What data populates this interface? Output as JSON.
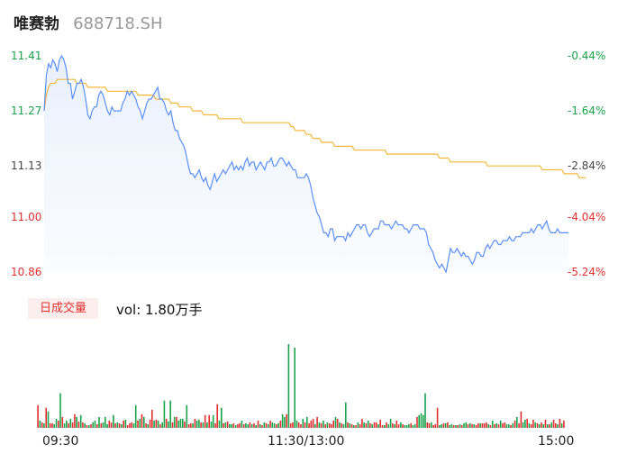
{
  "stock": {
    "name": "唯赛勃",
    "code": "688718.SH"
  },
  "volume_panel": {
    "tag_label": "日成交量",
    "vol_text": "vol: 1.80万手"
  },
  "colors": {
    "up": "#e03030",
    "down": "#1aa34a",
    "neutral": "#444444",
    "price_line": "#5b8ff9",
    "avg_line": "#f5b73b"
  },
  "chart_data": {
    "type": "line",
    "title": "",
    "xlabel": "",
    "ylabel": "",
    "ylim": [
      10.86,
      11.41
    ],
    "y_ticks": [
      {
        "label": "11.41",
        "value": 11.41,
        "pct": "-0.44%",
        "dir": "down"
      },
      {
        "label": "11.27",
        "value": 11.27,
        "pct": "-1.64%",
        "dir": "down"
      },
      {
        "label": "11.13",
        "value": 11.13,
        "pct": "-2.84%",
        "dir": "neutral"
      },
      {
        "label": "11.00",
        "value": 11.0,
        "pct": "-4.04%",
        "dir": "up"
      },
      {
        "label": "10.86",
        "value": 10.86,
        "pct": "-5.24%",
        "dir": "up"
      }
    ],
    "x_ticks": [
      "09:30",
      "11:30/13:00",
      "15:00"
    ],
    "price": [
      11.27,
      11.36,
      11.39,
      11.38,
      11.4,
      11.39,
      11.37,
      11.4,
      11.41,
      11.4,
      11.38,
      11.34,
      11.34,
      11.3,
      11.32,
      11.34,
      11.34,
      11.35,
      11.33,
      11.3,
      11.26,
      11.25,
      11.27,
      11.28,
      11.28,
      11.31,
      11.32,
      11.31,
      11.29,
      11.27,
      11.26,
      11.28,
      11.27,
      11.27,
      11.27,
      11.27,
      11.29,
      11.3,
      11.32,
      11.31,
      11.32,
      11.31,
      11.3,
      11.28,
      11.27,
      11.25,
      11.27,
      11.29,
      11.3,
      11.3,
      11.31,
      11.32,
      11.33,
      11.3,
      11.3,
      11.29,
      11.27,
      11.26,
      11.27,
      11.24,
      11.22,
      11.22,
      11.2,
      11.19,
      11.18,
      11.16,
      11.13,
      11.11,
      11.11,
      11.1,
      11.11,
      11.12,
      11.1,
      11.09,
      11.1,
      11.08,
      11.07,
      11.09,
      11.11,
      11.09,
      11.1,
      11.11,
      11.12,
      11.11,
      11.12,
      11.13,
      11.14,
      11.12,
      11.13,
      11.12,
      11.13,
      11.12,
      11.14,
      11.15,
      11.13,
      11.14,
      11.14,
      11.12,
      11.13,
      11.14,
      11.13,
      11.12,
      11.14,
      11.14,
      11.15,
      11.13,
      11.13,
      11.14,
      11.15,
      11.15,
      11.14,
      11.13,
      11.14,
      11.13,
      11.12,
      11.12,
      11.1,
      11.1,
      11.1,
      11.1,
      11.11,
      11.1,
      11.08,
      11.05,
      11.03,
      11.01,
      11.0,
      10.98,
      10.96,
      10.96,
      10.95,
      10.97,
      10.97,
      10.94,
      10.95,
      10.95,
      10.95,
      10.95,
      10.94,
      10.96,
      10.95,
      10.96,
      10.97,
      10.98,
      10.98,
      10.97,
      10.98,
      10.98,
      10.96,
      10.95,
      10.96,
      10.97,
      10.97,
      10.97,
      10.99,
      10.99,
      10.98,
      10.98,
      10.98,
      10.97,
      10.98,
      10.99,
      10.98,
      10.98,
      10.98,
      10.97,
      10.97,
      10.96,
      10.97,
      10.98,
      10.98,
      10.98,
      10.97,
      10.97,
      10.97,
      10.96,
      10.93,
      10.92,
      10.91,
      10.89,
      10.88,
      10.87,
      10.88,
      10.87,
      10.86,
      10.89,
      10.92,
      10.91,
      10.91,
      10.92,
      10.91,
      10.9,
      10.91,
      10.9,
      10.9,
      10.89,
      10.88,
      10.89,
      10.91,
      10.91,
      10.9,
      10.9,
      10.92,
      10.93,
      10.92,
      10.93,
      10.94,
      10.94,
      10.93,
      10.93,
      10.94,
      10.94,
      10.94,
      10.95,
      10.94,
      10.94,
      10.95,
      10.95,
      10.95,
      10.96,
      10.96,
      10.96,
      10.96,
      10.97,
      10.96,
      10.97,
      10.98,
      10.98,
      10.97,
      10.98,
      10.99,
      10.97,
      10.96,
      10.96,
      10.96,
      10.97,
      10.96,
      10.96,
      10.96,
      10.96,
      10.96
    ],
    "avg": [
      11.27,
      11.31,
      11.33,
      11.34,
      11.34,
      11.34,
      11.35,
      11.35,
      11.35,
      11.35,
      11.35,
      11.35,
      11.35,
      11.35,
      11.35,
      11.34,
      11.34,
      11.34,
      11.34,
      11.34,
      11.33,
      11.33,
      11.33,
      11.33,
      11.33,
      11.33,
      11.33,
      11.33,
      11.33,
      11.32,
      11.32,
      11.32,
      11.32,
      11.32,
      11.32,
      11.32,
      11.32,
      11.32,
      11.32,
      11.32,
      11.32,
      11.32,
      11.32,
      11.31,
      11.31,
      11.31,
      11.31,
      11.31,
      11.31,
      11.31,
      11.31,
      11.3,
      11.3,
      11.3,
      11.3,
      11.3,
      11.3,
      11.3,
      11.29,
      11.29,
      11.29,
      11.29,
      11.28,
      11.28,
      11.28,
      11.28,
      11.28,
      11.28,
      11.27,
      11.27,
      11.27,
      11.27,
      11.27,
      11.26,
      11.26,
      11.26,
      11.26,
      11.26,
      11.26,
      11.26,
      11.25,
      11.25,
      11.25,
      11.25,
      11.25,
      11.25,
      11.25,
      11.25,
      11.25,
      11.25,
      11.25,
      11.24,
      11.24,
      11.24,
      11.24,
      11.24,
      11.24,
      11.24,
      11.24,
      11.24,
      11.24,
      11.24,
      11.24,
      11.24,
      11.24,
      11.24,
      11.24,
      11.24,
      11.24,
      11.24,
      11.24,
      11.24,
      11.24,
      11.23,
      11.23,
      11.22,
      11.22,
      11.22,
      11.22,
      11.22,
      11.21,
      11.21,
      11.21,
      11.2,
      11.2,
      11.2,
      11.2,
      11.19,
      11.19,
      11.19,
      11.19,
      11.19,
      11.19,
      11.18,
      11.18,
      11.18,
      11.18,
      11.18,
      11.18,
      11.18,
      11.18,
      11.18,
      11.17,
      11.17,
      11.17,
      11.17,
      11.17,
      11.17,
      11.17,
      11.17,
      11.17,
      11.17,
      11.17,
      11.17,
      11.17,
      11.17,
      11.17,
      11.16,
      11.16,
      11.16,
      11.16,
      11.16,
      11.16,
      11.16,
      11.16,
      11.16,
      11.16,
      11.16,
      11.16,
      11.16,
      11.16,
      11.16,
      11.16,
      11.16,
      11.16,
      11.16,
      11.16,
      11.16,
      11.16,
      11.16,
      11.16,
      11.15,
      11.15,
      11.15,
      11.15,
      11.15,
      11.14,
      11.14,
      11.14,
      11.14,
      11.14,
      11.14,
      11.14,
      11.14,
      11.14,
      11.14,
      11.14,
      11.14,
      11.14,
      11.14,
      11.14,
      11.14,
      11.14,
      11.13,
      11.13,
      11.13,
      11.13,
      11.13,
      11.13,
      11.13,
      11.13,
      11.13,
      11.13,
      11.13,
      11.13,
      11.13,
      11.13,
      11.13,
      11.13,
      11.13,
      11.13,
      11.13,
      11.13,
      11.13,
      11.13,
      11.13,
      11.13,
      11.13,
      11.12,
      11.12,
      11.12,
      11.12,
      11.12,
      11.12,
      11.12,
      11.12,
      11.12,
      11.12,
      11.11,
      11.11,
      11.11,
      11.11,
      11.11,
      11.11,
      11.11,
      11.1,
      11.1,
      11.1,
      11.1
    ],
    "volume": [
      [
        25,
        "up"
      ],
      [
        8,
        "down"
      ],
      [
        6,
        "up"
      ],
      [
        5,
        "down"
      ],
      [
        22,
        "up"
      ],
      [
        18,
        "down"
      ],
      [
        5,
        "up"
      ],
      [
        5,
        "up"
      ],
      [
        4,
        "down"
      ],
      [
        10,
        "down"
      ],
      [
        8,
        "up"
      ],
      [
        38,
        "down"
      ],
      [
        12,
        "up"
      ],
      [
        5,
        "down"
      ],
      [
        8,
        "down"
      ],
      [
        5,
        "up"
      ],
      [
        10,
        "down"
      ],
      [
        6,
        "up"
      ],
      [
        15,
        "up"
      ],
      [
        12,
        "down"
      ],
      [
        7,
        "up"
      ],
      [
        14,
        "down"
      ],
      [
        6,
        "up"
      ],
      [
        5,
        "down"
      ],
      [
        3,
        "up"
      ],
      [
        3,
        "down"
      ],
      [
        4,
        "up"
      ],
      [
        6,
        "down"
      ],
      [
        8,
        "down"
      ],
      [
        4,
        "up"
      ],
      [
        12,
        "down"
      ],
      [
        5,
        "up"
      ],
      [
        6,
        "down"
      ],
      [
        12,
        "down"
      ],
      [
        4,
        "down"
      ],
      [
        8,
        "up"
      ],
      [
        6,
        "up"
      ],
      [
        14,
        "down"
      ],
      [
        5,
        "up"
      ],
      [
        6,
        "down"
      ],
      [
        5,
        "up"
      ],
      [
        4,
        "down"
      ],
      [
        8,
        "up"
      ],
      [
        9,
        "down"
      ],
      [
        3,
        "up"
      ],
      [
        5,
        "up"
      ],
      [
        6,
        "up"
      ],
      [
        5,
        "down"
      ],
      [
        25,
        "down"
      ],
      [
        8,
        "up"
      ],
      [
        10,
        "down"
      ],
      [
        15,
        "up"
      ],
      [
        12,
        "down"
      ],
      [
        5,
        "up"
      ],
      [
        4,
        "down"
      ],
      [
        9,
        "up"
      ],
      [
        20,
        "up"
      ],
      [
        8,
        "down"
      ],
      [
        9,
        "up"
      ],
      [
        8,
        "down"
      ],
      [
        4,
        "up"
      ],
      [
        6,
        "down"
      ],
      [
        30,
        "down"
      ],
      [
        10,
        "up"
      ],
      [
        7,
        "down"
      ],
      [
        30,
        "down"
      ],
      [
        6,
        "up"
      ],
      [
        12,
        "down"
      ],
      [
        12,
        "up"
      ],
      [
        8,
        "down"
      ],
      [
        10,
        "down"
      ],
      [
        10,
        "down"
      ],
      [
        7,
        "up"
      ],
      [
        25,
        "down"
      ],
      [
        4,
        "up"
      ],
      [
        5,
        "up"
      ],
      [
        5,
        "down"
      ],
      [
        10,
        "up"
      ],
      [
        8,
        "down"
      ],
      [
        9,
        "down"
      ],
      [
        6,
        "up"
      ],
      [
        6,
        "down"
      ],
      [
        14,
        "up"
      ],
      [
        6,
        "down"
      ],
      [
        14,
        "up"
      ],
      [
        7,
        "down"
      ],
      [
        14,
        "down"
      ],
      [
        5,
        "up"
      ],
      [
        26,
        "up"
      ],
      [
        8,
        "down"
      ],
      [
        22,
        "down"
      ],
      [
        5,
        "up"
      ],
      [
        6,
        "down"
      ],
      [
        7,
        "up"
      ],
      [
        4,
        "down"
      ],
      [
        4,
        "down"
      ],
      [
        5,
        "up"
      ],
      [
        3,
        "down"
      ],
      [
        4,
        "up"
      ],
      [
        5,
        "up"
      ],
      [
        8,
        "down"
      ],
      [
        4,
        "up"
      ],
      [
        5,
        "down"
      ],
      [
        4,
        "down"
      ],
      [
        6,
        "up"
      ],
      [
        4,
        "down"
      ],
      [
        5,
        "up"
      ],
      [
        3,
        "down"
      ],
      [
        8,
        "up"
      ],
      [
        4,
        "down"
      ],
      [
        3,
        "up"
      ],
      [
        6,
        "down"
      ],
      [
        5,
        "up"
      ],
      [
        4,
        "down"
      ],
      [
        8,
        "up"
      ],
      [
        6,
        "down"
      ],
      [
        5,
        "down"
      ],
      [
        4,
        "up"
      ],
      [
        5,
        "down"
      ],
      [
        8,
        "up"
      ],
      [
        15,
        "down"
      ],
      [
        12,
        "down"
      ],
      [
        15,
        "up"
      ],
      [
        92,
        "down"
      ],
      [
        5,
        "up"
      ],
      [
        6,
        "up"
      ],
      [
        88,
        "down"
      ],
      [
        8,
        "down"
      ],
      [
        6,
        "up"
      ],
      [
        4,
        "up"
      ],
      [
        10,
        "down"
      ],
      [
        6,
        "up"
      ],
      [
        12,
        "down"
      ],
      [
        5,
        "up"
      ],
      [
        8,
        "up"
      ],
      [
        10,
        "up"
      ],
      [
        4,
        "down"
      ],
      [
        12,
        "up"
      ],
      [
        6,
        "down"
      ],
      [
        5,
        "up"
      ],
      [
        8,
        "down"
      ],
      [
        4,
        "up"
      ],
      [
        6,
        "down"
      ],
      [
        5,
        "up"
      ],
      [
        4,
        "up"
      ],
      [
        8,
        "up"
      ],
      [
        12,
        "down"
      ],
      [
        10,
        "up"
      ],
      [
        6,
        "down"
      ],
      [
        5,
        "up"
      ],
      [
        4,
        "down"
      ],
      [
        28,
        "down"
      ],
      [
        6,
        "up"
      ],
      [
        5,
        "down"
      ],
      [
        4,
        "up"
      ],
      [
        3,
        "down"
      ],
      [
        3,
        "up"
      ],
      [
        6,
        "down"
      ],
      [
        4,
        "up"
      ],
      [
        10,
        "up"
      ],
      [
        6,
        "down"
      ],
      [
        5,
        "up"
      ],
      [
        8,
        "down"
      ],
      [
        5,
        "up"
      ],
      [
        4,
        "down"
      ],
      [
        6,
        "up"
      ],
      [
        6,
        "up"
      ],
      [
        4,
        "down"
      ],
      [
        9,
        "up"
      ],
      [
        3,
        "up"
      ],
      [
        3,
        "down"
      ],
      [
        6,
        "up"
      ],
      [
        4,
        "down"
      ],
      [
        10,
        "down"
      ],
      [
        5,
        "up"
      ],
      [
        4,
        "down"
      ],
      [
        8,
        "up"
      ],
      [
        4,
        "up"
      ],
      [
        6,
        "down"
      ],
      [
        4,
        "up"
      ],
      [
        3,
        "down"
      ],
      [
        3,
        "down"
      ],
      [
        4,
        "down"
      ],
      [
        5,
        "up"
      ],
      [
        3,
        "down"
      ],
      [
        4,
        "down"
      ],
      [
        12,
        "up"
      ],
      [
        14,
        "down"
      ],
      [
        16,
        "down"
      ],
      [
        14,
        "down"
      ],
      [
        38,
        "down"
      ],
      [
        6,
        "up"
      ],
      [
        5,
        "up"
      ],
      [
        6,
        "down"
      ],
      [
        3,
        "up"
      ],
      [
        4,
        "up"
      ],
      [
        22,
        "up"
      ],
      [
        3,
        "down"
      ],
      [
        4,
        "down"
      ],
      [
        5,
        "up"
      ],
      [
        5,
        "down"
      ],
      [
        6,
        "up"
      ],
      [
        3,
        "down"
      ],
      [
        4,
        "down"
      ],
      [
        3,
        "up"
      ],
      [
        3,
        "down"
      ],
      [
        3,
        "up"
      ],
      [
        4,
        "down"
      ],
      [
        3,
        "up"
      ],
      [
        5,
        "down"
      ],
      [
        6,
        "down"
      ],
      [
        4,
        "up"
      ],
      [
        5,
        "down"
      ],
      [
        4,
        "up"
      ],
      [
        4,
        "down"
      ],
      [
        3,
        "up"
      ],
      [
        5,
        "up"
      ],
      [
        5,
        "down"
      ],
      [
        5,
        "up"
      ],
      [
        5,
        "up"
      ],
      [
        6,
        "up"
      ],
      [
        4,
        "down"
      ],
      [
        3,
        "up"
      ],
      [
        8,
        "down"
      ],
      [
        4,
        "up"
      ],
      [
        5,
        "down"
      ],
      [
        4,
        "up"
      ],
      [
        8,
        "down"
      ],
      [
        5,
        "up"
      ],
      [
        6,
        "up"
      ],
      [
        4,
        "down"
      ],
      [
        4,
        "down"
      ],
      [
        3,
        "up"
      ],
      [
        5,
        "down"
      ],
      [
        8,
        "up"
      ],
      [
        12,
        "down"
      ],
      [
        5,
        "up"
      ],
      [
        18,
        "up"
      ],
      [
        6,
        "down"
      ],
      [
        9,
        "down"
      ],
      [
        10,
        "up"
      ],
      [
        5,
        "down"
      ],
      [
        4,
        "up"
      ],
      [
        9,
        "up"
      ],
      [
        6,
        "down"
      ],
      [
        5,
        "up"
      ],
      [
        4,
        "down"
      ],
      [
        6,
        "up"
      ],
      [
        4,
        "down"
      ],
      [
        9,
        "up"
      ],
      [
        4,
        "down"
      ],
      [
        4,
        "up"
      ],
      [
        6,
        "down"
      ],
      [
        9,
        "up"
      ],
      [
        5,
        "up"
      ],
      [
        4,
        "down"
      ],
      [
        10,
        "up"
      ],
      [
        5,
        "down"
      ],
      [
        8,
        "up"
      ]
    ]
  }
}
